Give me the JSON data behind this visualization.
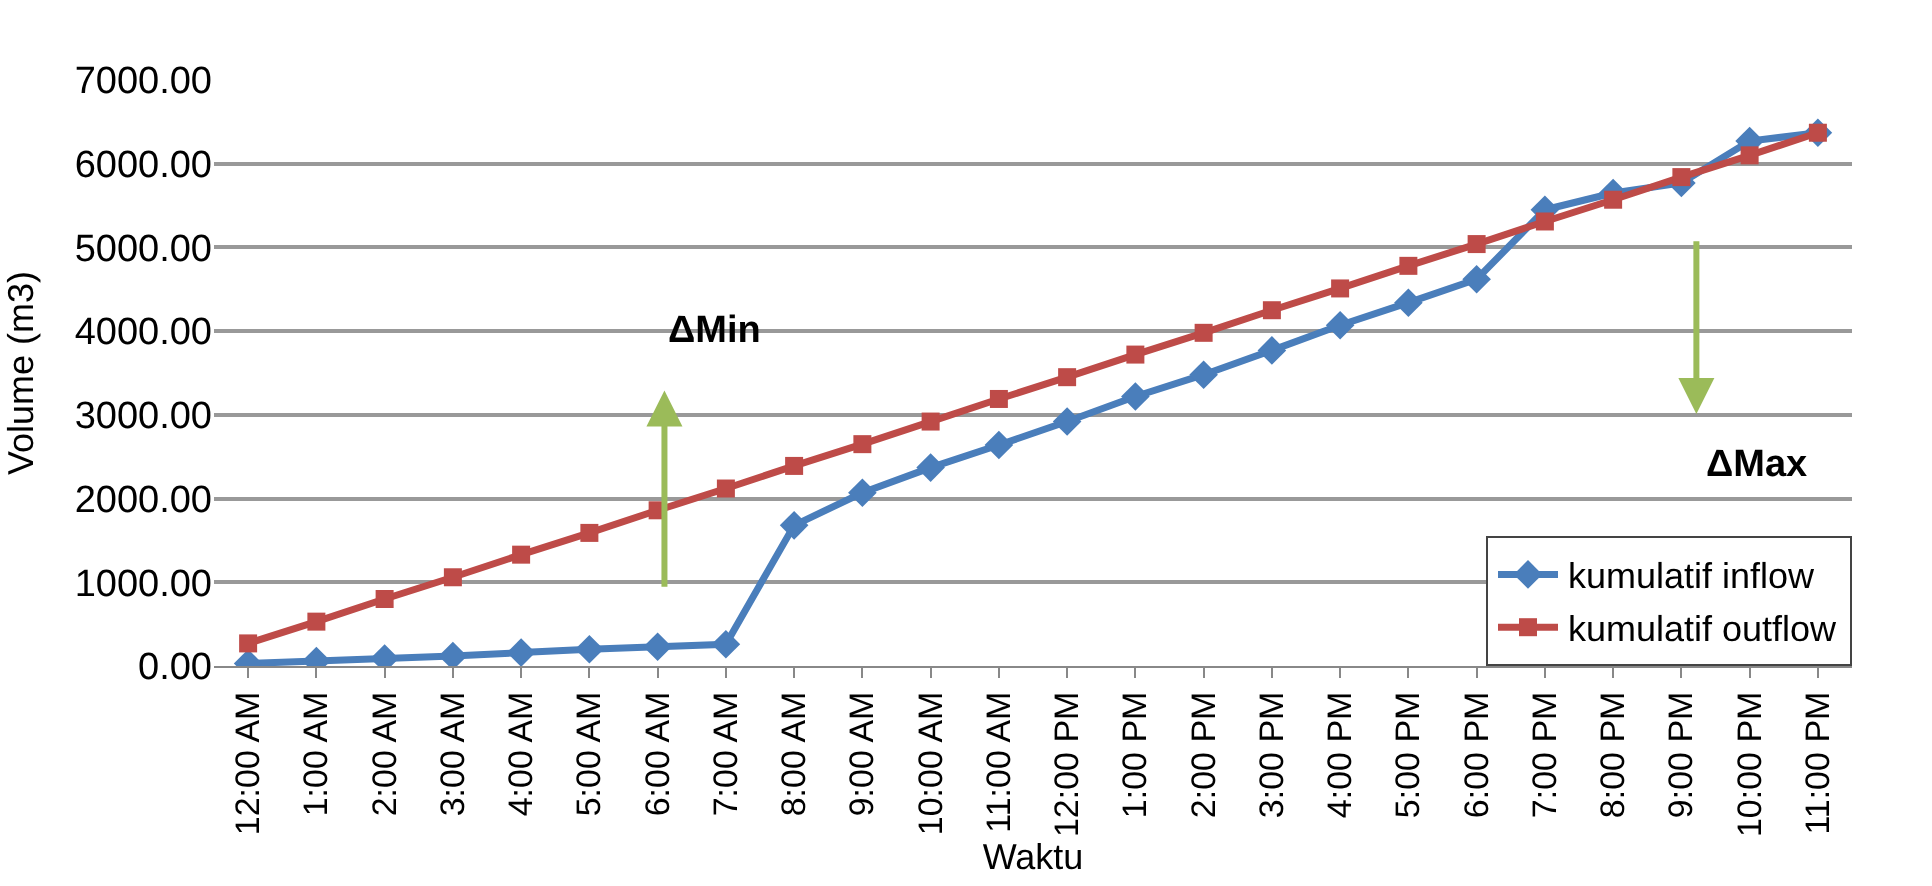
{
  "chart_data": {
    "type": "line",
    "xlabel": "Waktu",
    "ylabel": "Volume (m3)",
    "categories": [
      "12:00 AM",
      "1:00 AM",
      "2:00 AM",
      "3:00 AM",
      "4:00 AM",
      "5:00 AM",
      "6:00 AM",
      "7:00 AM",
      "8:00 AM",
      "9:00 AM",
      "10:00 AM",
      "11:00 AM",
      "12:00 PM",
      "1:00 PM",
      "2:00 PM",
      "3:00 PM",
      "4:00 PM",
      "5:00 PM",
      "6:00 PM",
      "7:00 PM",
      "8:00 PM",
      "9:00 PM",
      "10:00 PM",
      "11:00 PM"
    ],
    "series": [
      {
        "name": "kumulatif inflow",
        "color": "#4a7ebb",
        "marker": "diamond",
        "values": [
          30,
          60,
          90,
          120,
          160,
          200,
          230,
          260,
          1680,
          2070,
          2370,
          2640,
          2920,
          3220,
          3480,
          3770,
          4070,
          4340,
          4620,
          5450,
          5650,
          5770,
          6270,
          6370
        ]
      },
      {
        "name": "kumulatif outflow",
        "color": "#be4b48",
        "marker": "square",
        "values": [
          270,
          530,
          800,
          1060,
          1330,
          1590,
          1860,
          2120,
          2390,
          2650,
          2920,
          3190,
          3450,
          3720,
          3980,
          4250,
          4510,
          4780,
          5040,
          5310,
          5570,
          5840,
          6100,
          6370
        ]
      }
    ],
    "ylim": [
      0,
      7000
    ],
    "yticks": [
      {
        "value": 0,
        "label": "0.00"
      },
      {
        "value": 1000,
        "label": "1000.00"
      },
      {
        "value": 2000,
        "label": "2000.00"
      },
      {
        "value": 3000,
        "label": "3000.00"
      },
      {
        "value": 4000,
        "label": "4000.00"
      },
      {
        "value": 5000,
        "label": "5000.00"
      },
      {
        "value": 6000,
        "label": "6000.00"
      },
      {
        "value": 7000,
        "label": "7000.00"
      }
    ],
    "grid": "y",
    "legend": "bottom right",
    "line_style": "solid",
    "annotations": [
      "ΔMin",
      "ΔMax"
    ]
  }
}
